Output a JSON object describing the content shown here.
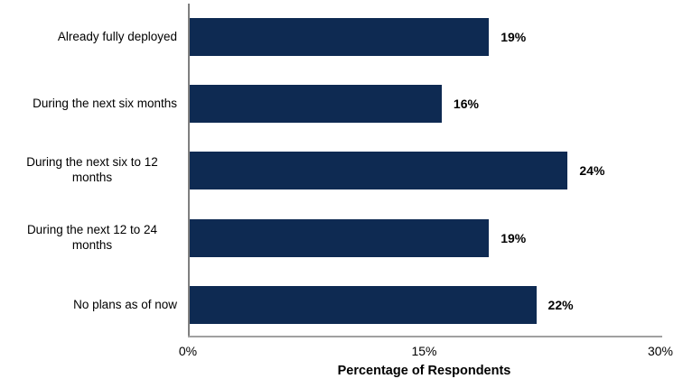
{
  "chart_data": {
    "type": "bar",
    "orientation": "horizontal",
    "title": "",
    "xlabel": "Percentage of Respondents",
    "ylabel": "",
    "categories": [
      "Already fully deployed",
      "During the next six months",
      "During the next six to 12 months",
      "During the next 12 to 24 months",
      "No plans as of now"
    ],
    "values": [
      19,
      16,
      24,
      19,
      22
    ],
    "value_labels": [
      "19%",
      "16%",
      "24%",
      "19%",
      "22%"
    ],
    "xlim": [
      0,
      30
    ],
    "x_ticks": [
      {
        "value": 0,
        "label": "0%"
      },
      {
        "value": 15,
        "label": "15%"
      },
      {
        "value": 30,
        "label": "30%"
      }
    ],
    "grid": false,
    "legend": false,
    "colors": {
      "bar": "#0e2a52",
      "x_axis_line": "#a0a0a0",
      "y_axis_line": "#7f7f7f",
      "text": "#000000"
    }
  }
}
